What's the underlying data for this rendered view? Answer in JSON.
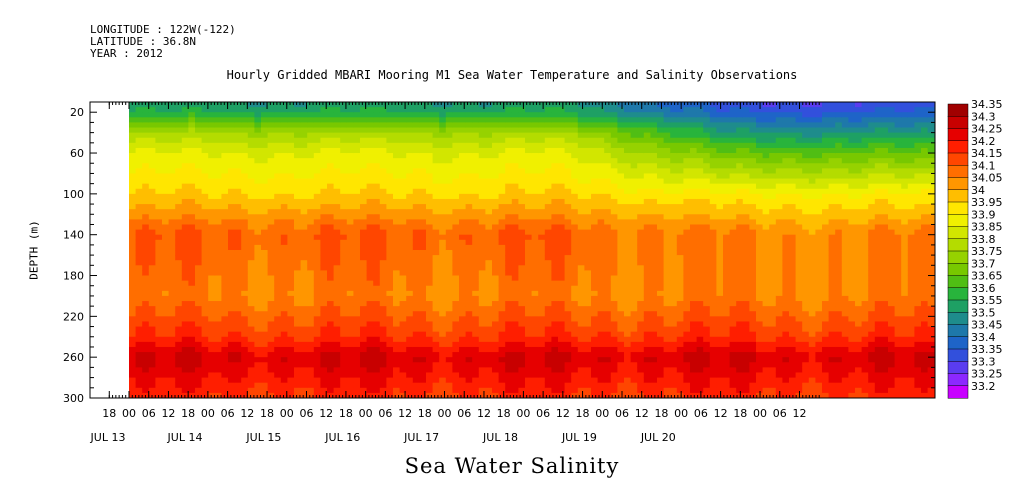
{
  "header": {
    "longitude": "LONGITUDE : 122W(-122)",
    "latitude": "LATITUDE : 36.8N",
    "year": "YEAR : 2012"
  },
  "chart_data": {
    "type": "heatmap",
    "title": "Hourly Gridded MBARI Mooring M1 Sea Water Temperature and Salinity Observations",
    "xlabel": "Sea Water Salinity",
    "ylabel": "DEPTH (m)",
    "ylim": [
      300,
      10
    ],
    "y_ticks": [
      20,
      60,
      100,
      140,
      180,
      220,
      260,
      300
    ],
    "x_hour_tick_labels": [
      "18",
      "00",
      "06",
      "12",
      "18",
      "00",
      "06",
      "12",
      "18",
      "00",
      "06",
      "12",
      "18",
      "00",
      "06",
      "12",
      "18",
      "00",
      "06",
      "12",
      "18",
      "00",
      "06",
      "12",
      "18",
      "00",
      "06",
      "12",
      "18",
      "00",
      "06",
      "12",
      "18",
      "00",
      "06",
      "12"
    ],
    "x_day_labels": [
      "JUL 13",
      "JUL 14",
      "JUL 15",
      "JUL 16",
      "JUL 17",
      "JUL 18",
      "JUL 19",
      "JUL 20"
    ],
    "colorbar_levels": [
      "34.35",
      "34.3",
      "34.25",
      "34.2",
      "34.15",
      "34.1",
      "34.05",
      "34",
      "33.95",
      "33.9",
      "33.85",
      "33.8",
      "33.75",
      "33.7",
      "33.65",
      "33.6",
      "33.55",
      "33.5",
      "33.45",
      "33.4",
      "33.35",
      "33.3",
      "33.25",
      "33.2"
    ],
    "colorbar_colors": [
      "#a00000",
      "#c80000",
      "#e60000",
      "#ff1e00",
      "#ff4600",
      "#ff6e00",
      "#ff9600",
      "#ffbe00",
      "#ffe600",
      "#f0f000",
      "#d2e600",
      "#b4dc00",
      "#96d200",
      "#78c800",
      "#50be14",
      "#28b43c",
      "#1ea064",
      "#1e8c8c",
      "#1e78aa",
      "#1e64c8",
      "#3250dc",
      "#5a3cf0",
      "#8c28ff",
      "#c800ff"
    ],
    "data_start": "JUL 14 00",
    "data_end": "JUL 20 18",
    "depth_profile_early": [
      [
        10,
        33.55
      ],
      [
        20,
        33.6
      ],
      [
        40,
        33.8
      ],
      [
        60,
        33.9
      ],
      [
        100,
        34.0
      ],
      [
        140,
        34.15
      ],
      [
        200,
        34.1
      ],
      [
        240,
        34.2
      ],
      [
        260,
        34.3
      ],
      [
        300,
        34.2
      ]
    ],
    "depth_profile_late": [
      [
        10,
        33.35
      ],
      [
        20,
        33.4
      ],
      [
        40,
        33.55
      ],
      [
        60,
        33.7
      ],
      [
        100,
        33.95
      ],
      [
        140,
        34.1
      ],
      [
        200,
        34.1
      ],
      [
        240,
        34.2
      ],
      [
        260,
        34.3
      ],
      [
        300,
        34.2
      ]
    ]
  }
}
